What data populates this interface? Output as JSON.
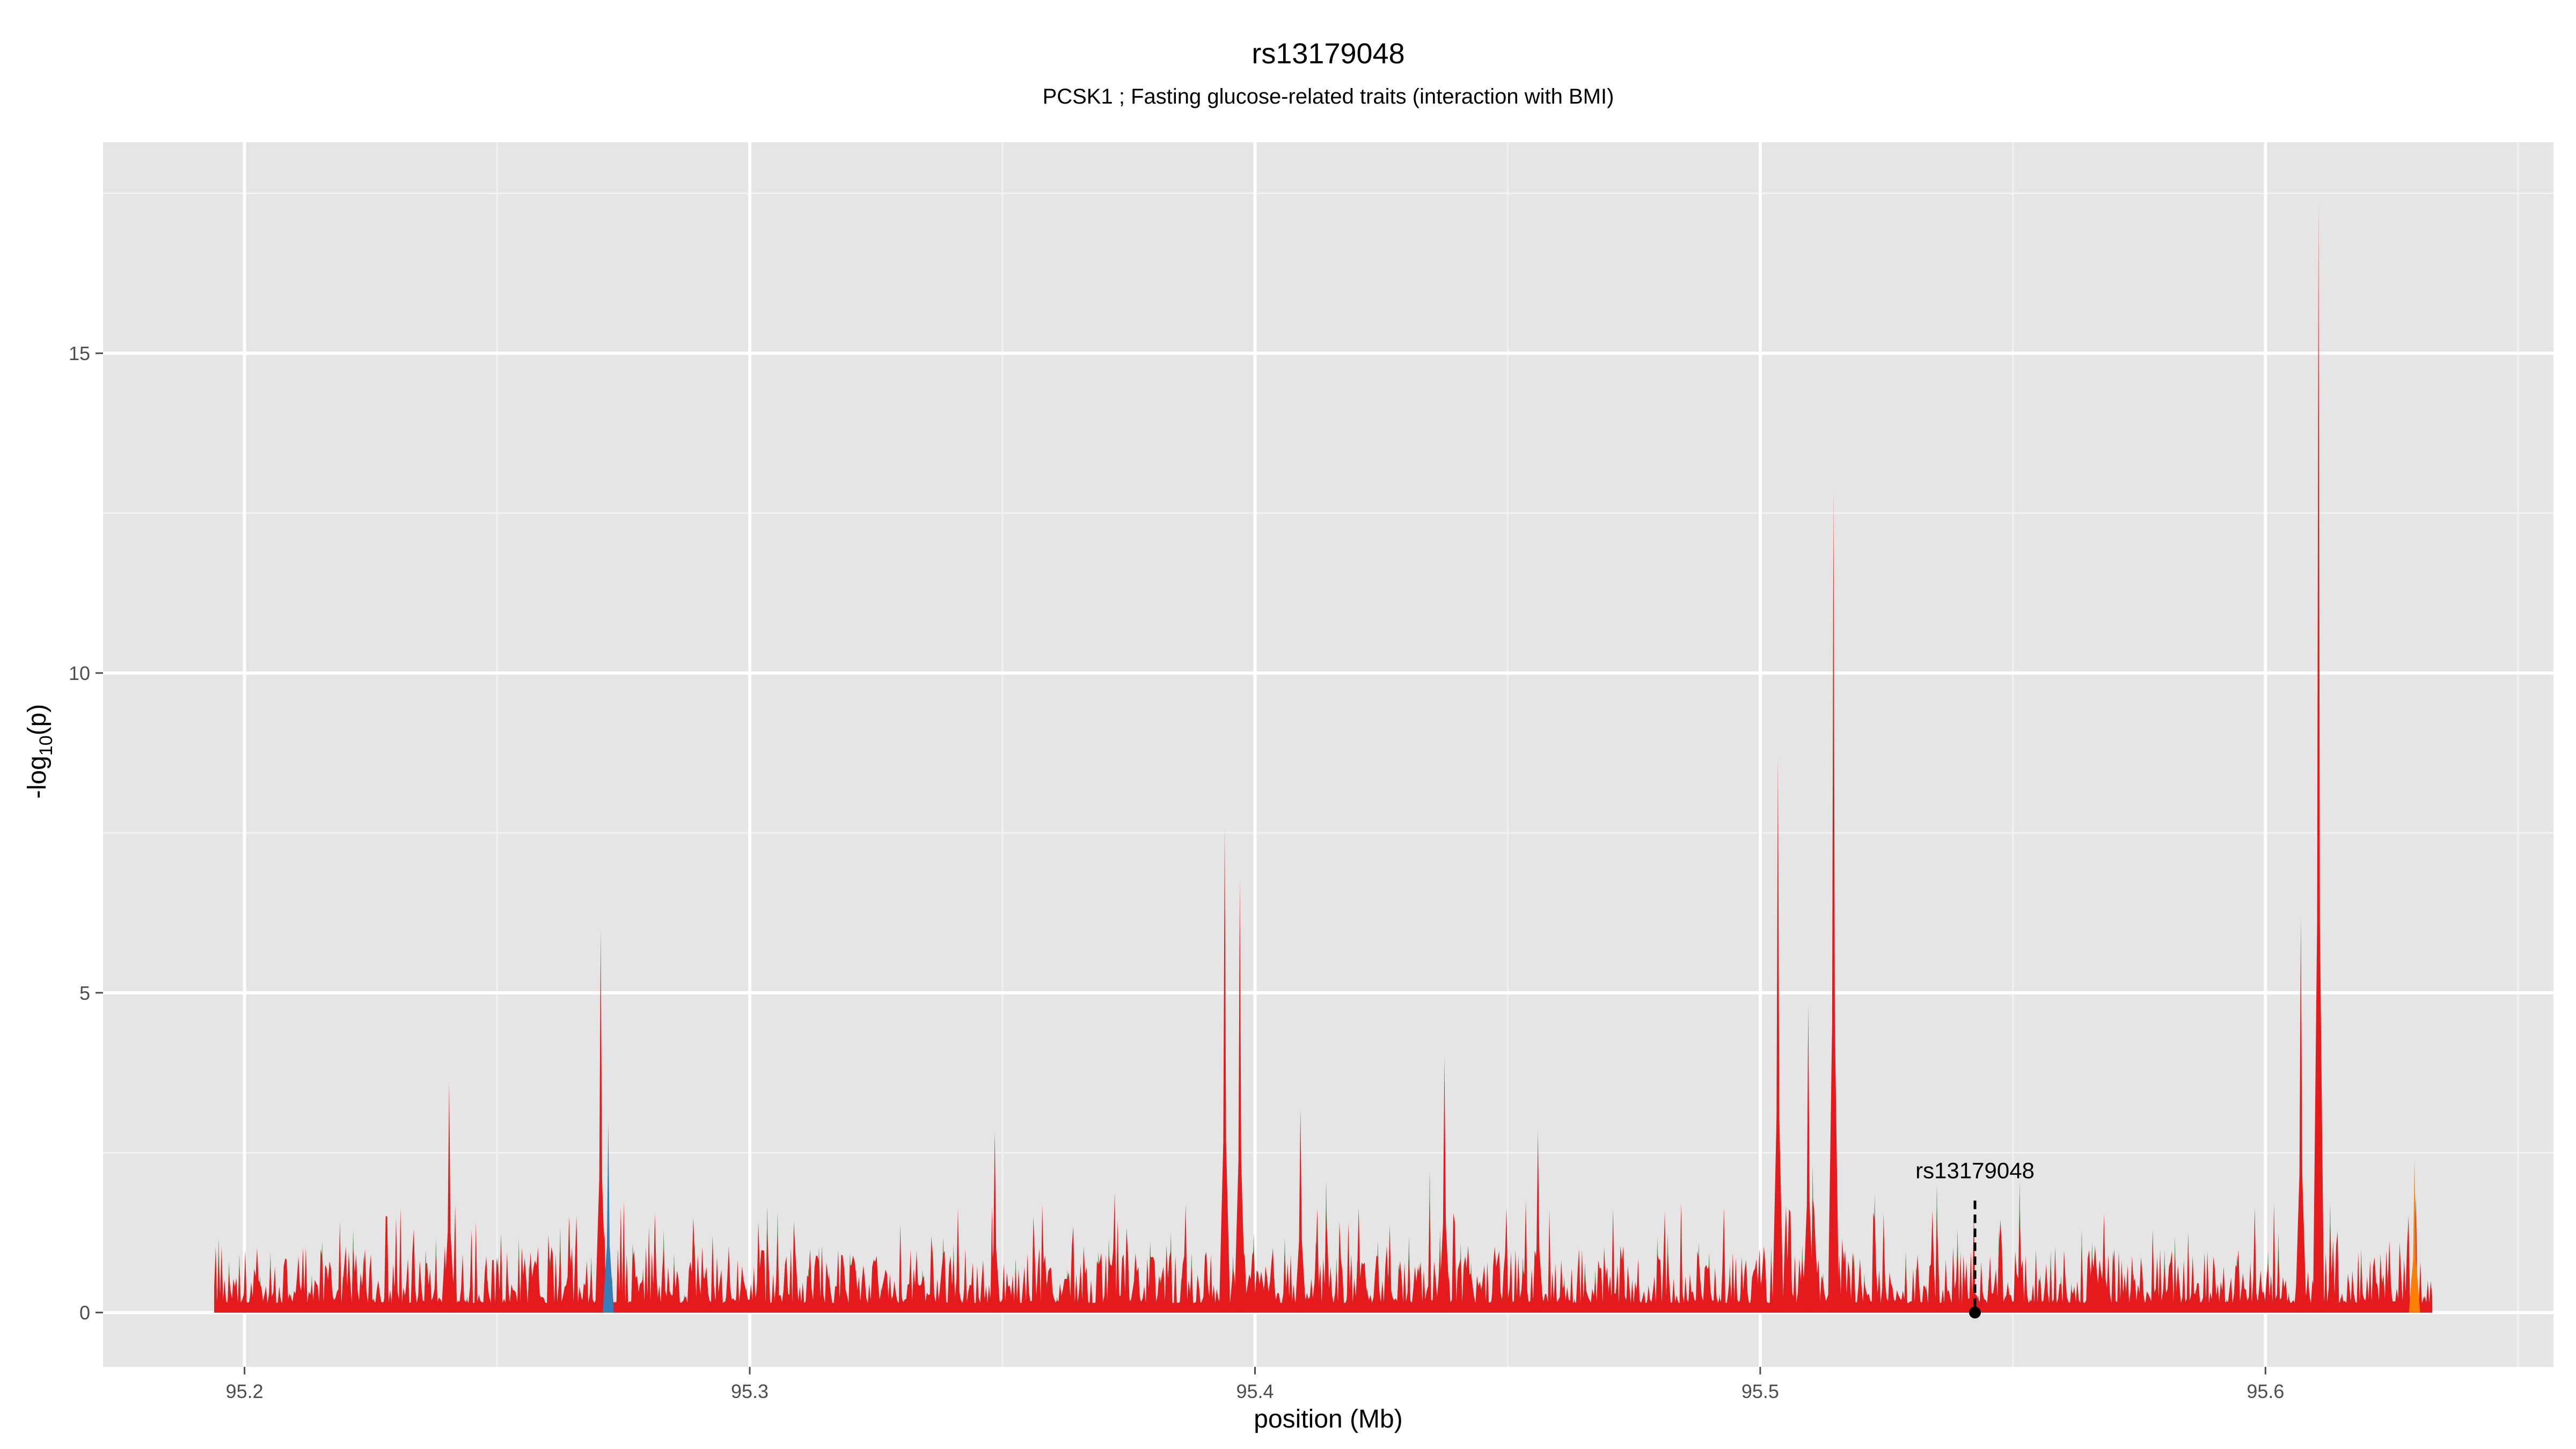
{
  "title": "rs13179048",
  "subtitle": "PCSK1 ; Fasting glucose-related traits (interaction with BMI)",
  "chart_data": {
    "type": "area",
    "title": "rs13179048",
    "subtitle": "PCSK1 ; Fasting glucose-related traits (interaction with BMI)",
    "xlabel": "position (Mb)",
    "ylabel_main": "-log",
    "ylabel_sub": "10",
    "ylabel_tail": "(p)",
    "xlim": [
      95.172,
      95.657
    ],
    "ylim": [
      -0.85,
      18.3
    ],
    "x_ticks": [
      95.2,
      95.3,
      95.4,
      95.5,
      95.6
    ],
    "x_tick_labels": [
      "95.2",
      "95.3",
      "95.4",
      "95.5",
      "95.6"
    ],
    "y_ticks": [
      0,
      5,
      10,
      15
    ],
    "y_tick_labels": [
      "0",
      "5",
      "10",
      "15"
    ],
    "grid": true,
    "x_range": [
      95.194,
      95.633
    ],
    "colors": {
      "panel": "#e5e5e5",
      "grid_major": "#ffffff",
      "grid_minor": "#f2f2f2",
      "red": "#e41a1c",
      "orange": "#ff7f00",
      "blue": "#377eb8",
      "green": "#4daf4a"
    },
    "peaks": [
      {
        "x": 95.2405,
        "y": 3.6
      },
      {
        "x": 95.2705,
        "y": 6.0
      },
      {
        "x": 95.272,
        "y": 3.0,
        "series": "blue"
      },
      {
        "x": 95.3485,
        "y": 2.85
      },
      {
        "x": 95.394,
        "y": 7.6
      },
      {
        "x": 95.397,
        "y": 6.8
      },
      {
        "x": 95.409,
        "y": 3.2
      },
      {
        "x": 95.4375,
        "y": 4.0
      },
      {
        "x": 95.456,
        "y": 2.85
      },
      {
        "x": 95.5035,
        "y": 8.7
      },
      {
        "x": 95.5095,
        "y": 4.8
      },
      {
        "x": 95.5145,
        "y": 12.9
      },
      {
        "x": 95.607,
        "y": 6.2
      },
      {
        "x": 95.6105,
        "y": 17.4
      },
      {
        "x": 95.6295,
        "y": 2.4,
        "series": "orange"
      }
    ],
    "highlight": {
      "label": "rs13179048",
      "x": 95.5425,
      "y": 0.0,
      "label_y": 2.1
    }
  }
}
